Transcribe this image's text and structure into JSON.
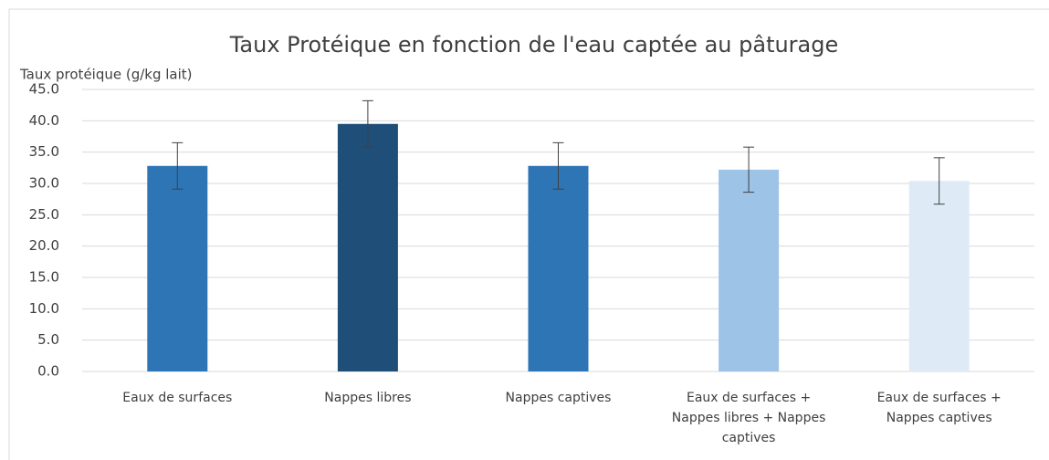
{
  "chart_data": {
    "type": "bar",
    "title": "Taux Protéique en fonction de l'eau captée au pâturage",
    "y_label": "Taux protéique (g/kg lait)",
    "categories": [
      "Eaux de surfaces",
      "Nappes libres",
      "Nappes captives",
      "Eaux de surfaces + Nappes libres + Nappes captives",
      "Eaux de surfaces + Nappes captives"
    ],
    "values": [
      32.8,
      39.5,
      32.8,
      32.2,
      30.4
    ],
    "errors": [
      3.7,
      3.7,
      3.7,
      3.6,
      3.7
    ],
    "colors": [
      "#2e75b6",
      "#1f4e79",
      "#2e75b6",
      "#9dc3e6",
      "#deebf7"
    ],
    "ylim": [
      0,
      45
    ],
    "yticks": [
      {
        "value": 0,
        "label": "0.0"
      },
      {
        "value": 5,
        "label": "5.0"
      },
      {
        "value": 10,
        "label": "10.0"
      },
      {
        "value": 15,
        "label": "15.0"
      },
      {
        "value": 20,
        "label": "20.0"
      },
      {
        "value": 25,
        "label": "25.0"
      },
      {
        "value": 30,
        "label": "30.0"
      },
      {
        "value": 35,
        "label": "35.0"
      },
      {
        "value": 40,
        "label": "40.0"
      },
      {
        "value": 45,
        "label": "45.0"
      }
    ],
    "grid": true
  }
}
